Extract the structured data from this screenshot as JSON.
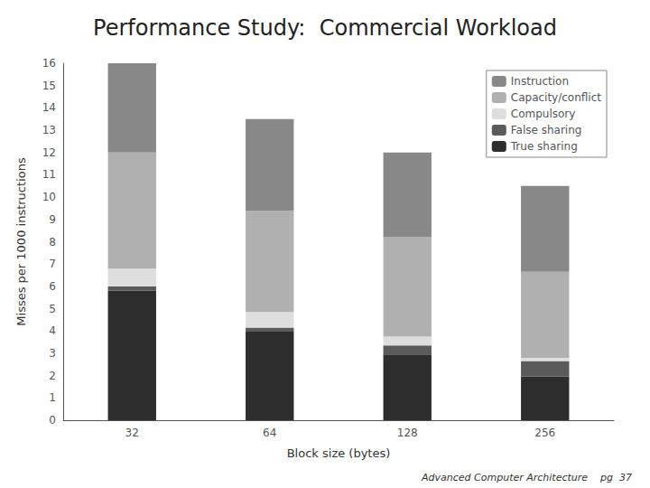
{
  "chart_data": {
    "type": "bar",
    "stacked": true,
    "title": "Performance Study:  Commercial Workload",
    "xlabel": "Block size (bytes)",
    "ylabel": "Misses per 1000 instructions",
    "categories": [
      "32",
      "64",
      "128",
      "256"
    ],
    "series": [
      {
        "name": "True sharing",
        "color": "#2d2d2d",
        "values": [
          5.8,
          4.0,
          2.95,
          1.95
        ]
      },
      {
        "name": "False sharing",
        "color": "#5a5a5a",
        "values": [
          0.2,
          0.15,
          0.4,
          0.7
        ]
      },
      {
        "name": "Compulsory",
        "color": "#dedede",
        "values": [
          0.8,
          0.7,
          0.4,
          0.15
        ]
      },
      {
        "name": "Capacity/conflict",
        "color": "#b0b0b0",
        "values": [
          5.2,
          4.55,
          4.45,
          3.85
        ]
      },
      {
        "name": "Instruction",
        "color": "#888888",
        "values": [
          4.0,
          4.1,
          3.8,
          3.85
        ]
      }
    ],
    "ylim": [
      0,
      16
    ],
    "yticks": [
      0,
      1,
      2,
      3,
      4,
      5,
      6,
      7,
      8,
      9,
      10,
      11,
      12,
      13,
      14,
      15,
      16
    ],
    "legend": "upper right",
    "grid": false,
    "annotations": [
      "Advanced Computer Architecture    pg  37"
    ]
  }
}
